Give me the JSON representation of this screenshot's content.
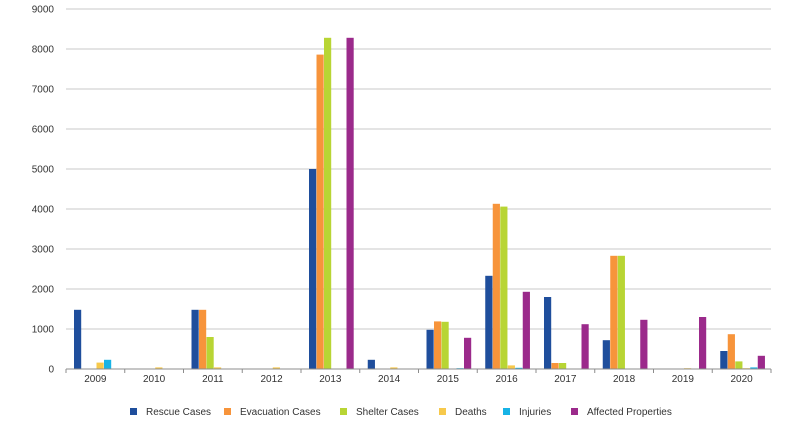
{
  "chart_data": {
    "type": "bar",
    "title": "",
    "xlabel": "",
    "ylabel": "",
    "ylim": [
      0,
      9000
    ],
    "yticks": [
      0,
      1000,
      2000,
      3000,
      4000,
      5000,
      6000,
      7000,
      8000,
      9000
    ],
    "ytick_labels": [
      "0",
      "1000",
      "2000",
      "3000",
      "4000",
      "5000",
      "6000",
      "7000",
      "8000",
      "9000"
    ],
    "grid": true,
    "legend_position": "bottom",
    "categories": [
      "2009",
      "2010",
      "2011",
      "2012",
      "2013",
      "2014",
      "2015",
      "2016",
      "2017",
      "2018",
      "2019",
      "2020"
    ],
    "series": [
      {
        "name": "Rescue Cases",
        "color": "#1f4e9c",
        "values": [
          1480,
          0,
          1480,
          0,
          5000,
          230,
          980,
          2330,
          1800,
          720,
          0,
          450
        ]
      },
      {
        "name": "Evacuation Cases",
        "color": "#f7943b",
        "values": [
          0,
          0,
          1480,
          0,
          7860,
          0,
          1190,
          4130,
          150,
          2830,
          0,
          870
        ]
      },
      {
        "name": "Shelter Cases",
        "color": "#b8d534",
        "values": [
          0,
          0,
          800,
          0,
          8280,
          0,
          1180,
          4060,
          150,
          2830,
          0,
          190
        ]
      },
      {
        "name": "Deaths",
        "color": "#f7c94b",
        "values": [
          160,
          40,
          40,
          40,
          0,
          40,
          0,
          90,
          0,
          0,
          20,
          20
        ]
      },
      {
        "name": "Injuries",
        "color": "#17b3e6",
        "values": [
          230,
          0,
          0,
          0,
          0,
          0,
          20,
          30,
          0,
          0,
          0,
          40
        ]
      },
      {
        "name": "Affected Properties",
        "color": "#9b2a8b",
        "values": [
          0,
          0,
          0,
          0,
          8280,
          0,
          780,
          1930,
          1120,
          1230,
          1300,
          330
        ]
      }
    ]
  }
}
